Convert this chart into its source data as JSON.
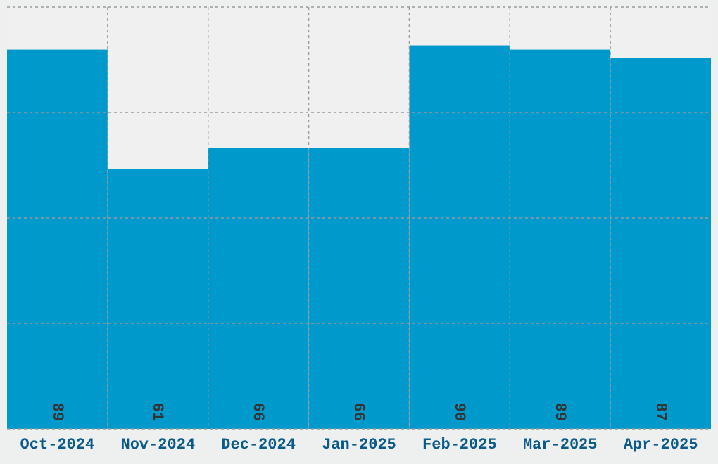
{
  "chart_data": {
    "type": "bar",
    "categories": [
      "Oct-2024",
      "Nov-2024",
      "Dec-2024",
      "Jan-2025",
      "Feb-2025",
      "Mar-2025",
      "Apr-2025"
    ],
    "values": [
      89,
      61,
      66,
      66,
      90,
      89,
      87
    ],
    "color": "#0099cc",
    "ylim": [
      0,
      99
    ],
    "yticks": [
      {
        "value": 0,
        "label": null
      },
      {
        "value": 24.75,
        "label": null
      },
      {
        "value": 49.5,
        "label": null
      },
      {
        "value": 74.25,
        "label": null
      },
      {
        "value": 99,
        "label": null
      }
    ],
    "tick_labels": "x",
    "grid": true,
    "data_labels": true
  }
}
